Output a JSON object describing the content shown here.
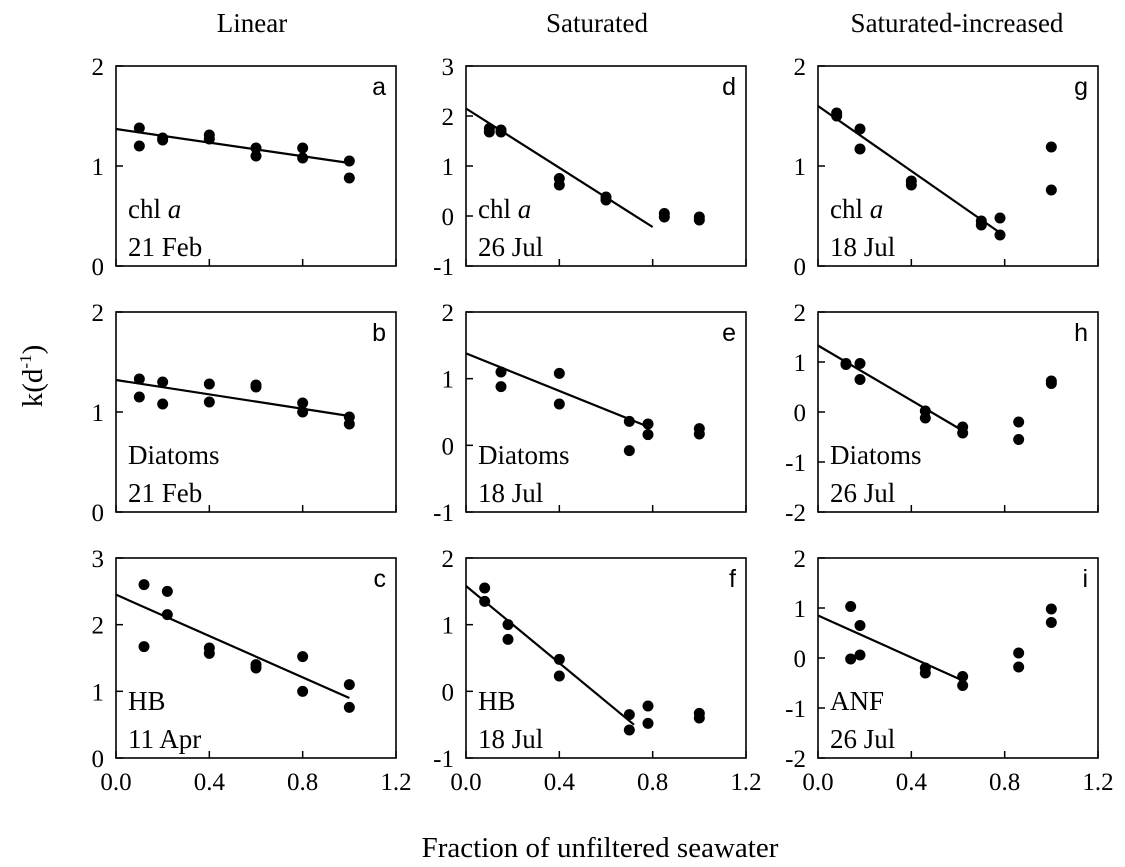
{
  "figure": {
    "column_titles": [
      "Linear",
      "Saturated",
      "Saturated-increased"
    ],
    "xlabel": "Fraction of unfiltered seawater",
    "ylabel_main": "k(d",
    "ylabel_sup": "-1",
    "ylabel_close": ")"
  },
  "chart_data": [
    {
      "type": "scatter",
      "panel": "a",
      "col": 0,
      "row": 0,
      "label_line1": "chl ",
      "label_italic": "a",
      "label_line2": "21 Feb",
      "xlim": [
        0,
        1.2
      ],
      "ylim": [
        0,
        2
      ],
      "xticks": [
        "0.0",
        "0.4",
        "0.8",
        "1.2"
      ],
      "xtick_values": [
        0,
        0.4,
        0.8,
        1.2
      ],
      "yticks": [
        "0",
        "1",
        "2"
      ],
      "ytick_values": [
        0,
        1,
        2
      ],
      "points": [
        [
          0.1,
          1.38
        ],
        [
          0.1,
          1.2
        ],
        [
          0.2,
          1.28
        ],
        [
          0.2,
          1.26
        ],
        [
          0.4,
          1.31
        ],
        [
          0.4,
          1.27
        ],
        [
          0.6,
          1.18
        ],
        [
          0.6,
          1.1
        ],
        [
          0.8,
          1.18
        ],
        [
          0.8,
          1.08
        ],
        [
          1.0,
          1.05
        ],
        [
          1.0,
          0.88
        ]
      ],
      "fit": [
        [
          0.0,
          1.37
        ],
        [
          1.0,
          1.03
        ]
      ]
    },
    {
      "type": "scatter",
      "panel": "b",
      "col": 0,
      "row": 1,
      "label_line1": "Diatoms",
      "label_italic": "",
      "label_line2": "21 Feb",
      "xlim": [
        0,
        1.2
      ],
      "ylim": [
        0,
        2
      ],
      "xticks": [
        "0.0",
        "0.4",
        "0.8",
        "1.2"
      ],
      "xtick_values": [
        0,
        0.4,
        0.8,
        1.2
      ],
      "yticks": [
        "0",
        "1",
        "2"
      ],
      "ytick_values": [
        0,
        1,
        2
      ],
      "points": [
        [
          0.1,
          1.33
        ],
        [
          0.1,
          1.15
        ],
        [
          0.2,
          1.3
        ],
        [
          0.2,
          1.08
        ],
        [
          0.4,
          1.28
        ],
        [
          0.4,
          1.1
        ],
        [
          0.6,
          1.27
        ],
        [
          0.6,
          1.25
        ],
        [
          0.8,
          1.09
        ],
        [
          0.8,
          1.0
        ],
        [
          1.0,
          0.95
        ],
        [
          1.0,
          0.88
        ]
      ],
      "fit": [
        [
          0.0,
          1.32
        ],
        [
          1.0,
          0.96
        ]
      ]
    },
    {
      "type": "scatter",
      "panel": "c",
      "col": 0,
      "row": 2,
      "label_line1": "HB",
      "label_italic": "",
      "label_line2": "11 Apr",
      "xlim": [
        0,
        1.2
      ],
      "ylim": [
        0,
        3
      ],
      "xticks": [
        "0.0",
        "0.4",
        "0.8",
        "1.2"
      ],
      "xtick_values": [
        0,
        0.4,
        0.8,
        1.2
      ],
      "yticks": [
        "0",
        "1",
        "2",
        "3"
      ],
      "ytick_values": [
        0,
        1,
        2,
        3
      ],
      "points": [
        [
          0.12,
          2.6
        ],
        [
          0.12,
          1.67
        ],
        [
          0.22,
          2.5
        ],
        [
          0.22,
          2.15
        ],
        [
          0.4,
          1.65
        ],
        [
          0.4,
          1.57
        ],
        [
          0.6,
          1.4
        ],
        [
          0.6,
          1.35
        ],
        [
          0.8,
          1.52
        ],
        [
          0.8,
          1.0
        ],
        [
          1.0,
          1.1
        ],
        [
          1.0,
          0.76
        ]
      ],
      "fit": [
        [
          0.0,
          2.45
        ],
        [
          1.0,
          0.9
        ]
      ]
    },
    {
      "type": "scatter",
      "panel": "d",
      "col": 1,
      "row": 0,
      "label_line1": "chl ",
      "label_italic": "a",
      "label_line2": "26 Jul",
      "xlim": [
        0,
        1.2
      ],
      "ylim": [
        -1,
        3
      ],
      "xticks": [
        "0.0",
        "0.4",
        "0.8",
        "1.2"
      ],
      "xtick_values": [
        0,
        0.4,
        0.8,
        1.2
      ],
      "yticks": [
        "-1",
        "0",
        "1",
        "2",
        "3"
      ],
      "ytick_values": [
        -1,
        0,
        1,
        2,
        3
      ],
      "points": [
        [
          0.1,
          1.75
        ],
        [
          0.1,
          1.68
        ],
        [
          0.15,
          1.72
        ],
        [
          0.15,
          1.68
        ],
        [
          0.4,
          0.75
        ],
        [
          0.4,
          0.62
        ],
        [
          0.6,
          0.38
        ],
        [
          0.6,
          0.32
        ],
        [
          0.85,
          0.05
        ],
        [
          0.85,
          -0.02
        ],
        [
          1.0,
          -0.02
        ],
        [
          1.0,
          -0.08
        ]
      ],
      "fit": [
        [
          0.0,
          2.15
        ],
        [
          0.8,
          -0.22
        ]
      ]
    },
    {
      "type": "scatter",
      "panel": "e",
      "col": 1,
      "row": 1,
      "label_line1": "Diatoms",
      "label_italic": "",
      "label_line2": "18 Jul",
      "xlim": [
        0,
        1.2
      ],
      "ylim": [
        -1,
        2
      ],
      "xticks": [
        "0.0",
        "0.4",
        "0.8",
        "1.2"
      ],
      "xtick_values": [
        0,
        0.4,
        0.8,
        1.2
      ],
      "yticks": [
        "-1",
        "0",
        "1",
        "2"
      ],
      "ytick_values": [
        -1,
        0,
        1,
        2
      ],
      "points": [
        [
          0.15,
          1.1
        ],
        [
          0.15,
          0.88
        ],
        [
          0.4,
          1.08
        ],
        [
          0.4,
          0.62
        ],
        [
          0.7,
          0.36
        ],
        [
          0.7,
          -0.08
        ],
        [
          0.78,
          0.32
        ],
        [
          0.78,
          0.16
        ],
        [
          1.0,
          0.25
        ],
        [
          1.0,
          0.17
        ]
      ],
      "fit": [
        [
          0.0,
          1.38
        ],
        [
          0.78,
          0.28
        ]
      ]
    },
    {
      "type": "scatter",
      "panel": "f",
      "col": 1,
      "row": 2,
      "label_line1": "HB",
      "label_italic": "",
      "label_line2": "18 Jul",
      "xlim": [
        0,
        1.2
      ],
      "ylim": [
        -1,
        2
      ],
      "xticks": [
        "0.0",
        "0.4",
        "0.8",
        "1.2"
      ],
      "xtick_values": [
        0,
        0.4,
        0.8,
        1.2
      ],
      "yticks": [
        "-1",
        "0",
        "1",
        "2"
      ],
      "ytick_values": [
        -1,
        0,
        1,
        2
      ],
      "points": [
        [
          0.08,
          1.55
        ],
        [
          0.08,
          1.35
        ],
        [
          0.18,
          1.0
        ],
        [
          0.18,
          0.78
        ],
        [
          0.4,
          0.48
        ],
        [
          0.4,
          0.23
        ],
        [
          0.7,
          -0.35
        ],
        [
          0.7,
          -0.58
        ],
        [
          0.78,
          -0.22
        ],
        [
          0.78,
          -0.48
        ],
        [
          1.0,
          -0.33
        ],
        [
          1.0,
          -0.4
        ]
      ],
      "fit": [
        [
          0.0,
          1.58
        ],
        [
          0.72,
          -0.5
        ]
      ]
    },
    {
      "type": "scatter",
      "panel": "g",
      "col": 2,
      "row": 0,
      "label_line1": "chl ",
      "label_italic": "a",
      "label_line2": "18 Jul",
      "xlim": [
        0,
        1.2
      ],
      "ylim": [
        0,
        2
      ],
      "xticks": [
        "0.0",
        "0.4",
        "0.8",
        "1.2"
      ],
      "xtick_values": [
        0,
        0.4,
        0.8,
        1.2
      ],
      "yticks": [
        "0",
        "1",
        "2"
      ],
      "ytick_values": [
        0,
        1,
        2
      ],
      "points": [
        [
          0.08,
          1.53
        ],
        [
          0.08,
          1.5
        ],
        [
          0.18,
          1.37
        ],
        [
          0.18,
          1.17
        ],
        [
          0.4,
          0.85
        ],
        [
          0.4,
          0.81
        ],
        [
          0.7,
          0.45
        ],
        [
          0.7,
          0.41
        ],
        [
          0.78,
          0.48
        ],
        [
          0.78,
          0.31
        ],
        [
          1.0,
          1.19
        ],
        [
          1.0,
          0.76
        ]
      ],
      "fit": [
        [
          0.0,
          1.6
        ],
        [
          0.8,
          0.3
        ]
      ]
    },
    {
      "type": "scatter",
      "panel": "h",
      "col": 2,
      "row": 1,
      "label_line1": "Diatoms",
      "label_italic": "",
      "label_line2": "26 Jul",
      "xlim": [
        0,
        1.2
      ],
      "ylim": [
        -2,
        2
      ],
      "xticks": [
        "0.0",
        "0.4",
        "0.8",
        "1.2"
      ],
      "xtick_values": [
        0,
        0.4,
        0.8,
        1.2
      ],
      "yticks": [
        "-2",
        "-1",
        "0",
        "1",
        "2"
      ],
      "ytick_values": [
        -2,
        -1,
        0,
        1,
        2
      ],
      "points": [
        [
          0.12,
          0.97
        ],
        [
          0.12,
          0.95
        ],
        [
          0.18,
          0.97
        ],
        [
          0.18,
          0.65
        ],
        [
          0.46,
          0.02
        ],
        [
          0.46,
          -0.12
        ],
        [
          0.62,
          -0.3
        ],
        [
          0.62,
          -0.42
        ],
        [
          0.86,
          -0.2
        ],
        [
          0.86,
          -0.55
        ],
        [
          1.0,
          0.62
        ],
        [
          1.0,
          0.57
        ]
      ],
      "fit": [
        [
          0.0,
          1.33
        ],
        [
          0.63,
          -0.4
        ]
      ]
    },
    {
      "type": "scatter",
      "panel": "i",
      "col": 2,
      "row": 2,
      "label_line1": "ANF",
      "label_italic": "",
      "label_line2": "26 Jul",
      "xlim": [
        0,
        1.2
      ],
      "ylim": [
        -2,
        2
      ],
      "xticks": [
        "0.0",
        "0.4",
        "0.8",
        "1.2"
      ],
      "xtick_values": [
        0,
        0.4,
        0.8,
        1.2
      ],
      "yticks": [
        "-2",
        "-1",
        "0",
        "1",
        "2"
      ],
      "ytick_values": [
        -2,
        -1,
        0,
        1,
        2
      ],
      "points": [
        [
          0.14,
          1.03
        ],
        [
          0.14,
          -0.02
        ],
        [
          0.18,
          0.65
        ],
        [
          0.18,
          0.06
        ],
        [
          0.46,
          -0.2
        ],
        [
          0.46,
          -0.3
        ],
        [
          0.62,
          -0.37
        ],
        [
          0.62,
          -0.55
        ],
        [
          0.86,
          0.1
        ],
        [
          0.86,
          -0.18
        ],
        [
          1.0,
          0.98
        ],
        [
          1.0,
          0.71
        ]
      ],
      "fit": [
        [
          0.0,
          0.85
        ],
        [
          0.62,
          -0.45
        ]
      ]
    }
  ]
}
